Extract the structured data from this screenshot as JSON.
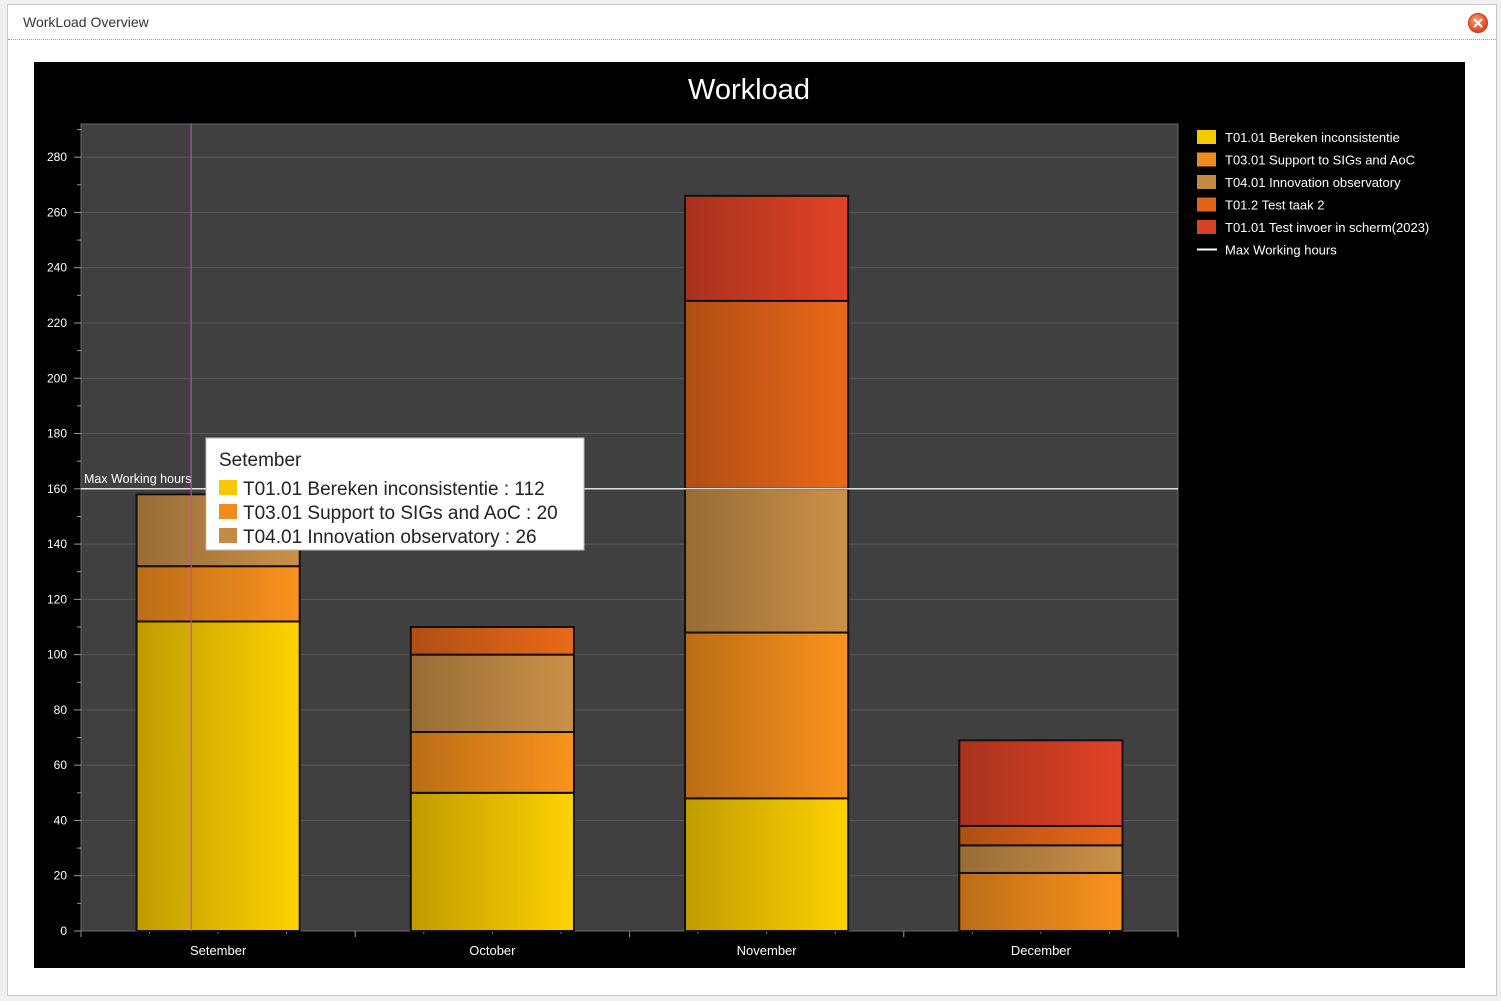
{
  "window": {
    "title": "WorkLoad Overview",
    "close_icon": "close-icon"
  },
  "colors": {
    "background": "#000000",
    "plot_area": "#404040",
    "grid": "#5a5a5a",
    "text": "#ffffff",
    "max_line": "#e0e0e0",
    "cursor_line": "#d040c0"
  },
  "chart_data": {
    "type": "bar",
    "stacked": true,
    "title": "Workload",
    "xlabel": "",
    "ylabel": "",
    "ylim": [
      0,
      292
    ],
    "yticks": [
      0,
      20,
      40,
      60,
      80,
      100,
      120,
      140,
      160,
      180,
      200,
      220,
      240,
      260,
      280
    ],
    "grid": true,
    "legend_position": "right",
    "categories": [
      "Setember",
      "October",
      "November",
      "December"
    ],
    "series": [
      {
        "name": "T01.01 Bereken inconsistentie",
        "color": "#f5c800",
        "values": [
          112,
          50,
          48,
          0
        ]
      },
      {
        "name": "T03.01 Support to SIGs and AoC",
        "color": "#ef8c1c",
        "values": [
          20,
          22,
          60,
          21
        ]
      },
      {
        "name": "T04.01 Innovation observatory",
        "color": "#c28a45",
        "values": [
          26,
          28,
          52,
          10
        ]
      },
      {
        "name": "T01.2 Test taak 2",
        "color": "#e06418",
        "values": [
          0,
          10,
          68,
          7
        ]
      },
      {
        "name": "T01.01 Test invoer in scherm(2023)",
        "color": "#d64024",
        "values": [
          0,
          0,
          38,
          31
        ]
      }
    ],
    "reference_line": {
      "name": "Max Working hours",
      "value": 160,
      "label": "Max Working hours"
    },
    "legend_line_label": "Max Working hours",
    "tooltip": {
      "title": "Setember",
      "items": [
        {
          "label": "T01.01 Bereken inconsistentie : 112",
          "color": "#f5c800"
        },
        {
          "label": "T03.01 Support to SIGs and AoC : 20",
          "color": "#ef8c1c"
        },
        {
          "label": "T04.01 Innovation observatory : 26",
          "color": "#c28a45"
        }
      ]
    }
  }
}
